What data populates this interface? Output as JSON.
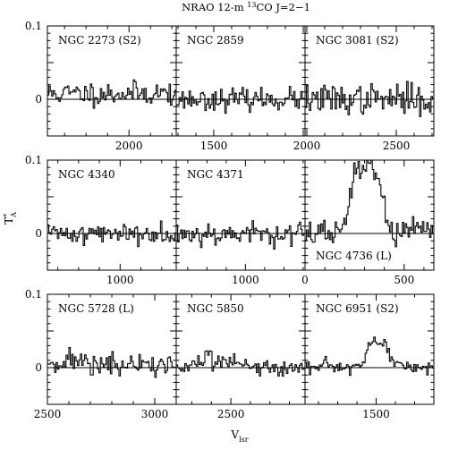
{
  "figure": {
    "title_main": "NRAO 12-m ",
    "title_iso": "13",
    "title_rest": "CO J=2−1",
    "ylabel_main": "T",
    "ylabel_sup": "*",
    "ylabel_sub": "A",
    "xlabel_main": "V",
    "xlabel_sub": "lsr"
  },
  "chart_data": [
    {
      "type": "line",
      "name": "NGC 2273 (S2)",
      "row": 0,
      "col": 0,
      "label_position": "top-left",
      "xlim": [
        1620,
        2220
      ],
      "ylim": [
        -0.05,
        0.1
      ],
      "x_ticks": [
        {
          "v": 2000,
          "label": "2000"
        }
      ],
      "y_ticks": [
        {
          "v": 0.1,
          "label": "0.1"
        },
        {
          "v": 0,
          "label": "0"
        }
      ],
      "features": [],
      "noise": 0.008,
      "baseline": 0.008,
      "seed": 11
    },
    {
      "type": "line",
      "name": "NGC 2859",
      "row": 0,
      "col": 1,
      "label_position": "top-left",
      "xlim": [
        1290,
        2010
      ],
      "ylim": [
        -0.05,
        0.1
      ],
      "x_ticks": [
        {
          "v": 1500,
          "label": "1500"
        }
      ],
      "y_ticks": [],
      "features": [],
      "noise": 0.007,
      "baseline": 0.0,
      "seed": 23
    },
    {
      "type": "line",
      "name": "NGC 3081 (S2)",
      "row": 0,
      "col": 2,
      "label_position": "top-left",
      "xlim": [
        1990,
        2710
      ],
      "ylim": [
        -0.05,
        0.1
      ],
      "x_ticks": [
        {
          "v": 2000,
          "label": "2000"
        },
        {
          "v": 2500,
          "label": "2500"
        }
      ],
      "y_ticks": [],
      "features": [],
      "noise": 0.01,
      "baseline": 0.0,
      "seed": 37
    },
    {
      "type": "line",
      "name": "NGC 4340",
      "row": 1,
      "col": 0,
      "label_position": "top-left",
      "xlim": [
        650,
        1270
      ],
      "ylim": [
        -0.05,
        0.1
      ],
      "x_ticks": [
        {
          "v": 1000,
          "label": "1000"
        }
      ],
      "y_ticks": [
        {
          "v": 0.1,
          "label": "0.1"
        },
        {
          "v": 0,
          "label": "0"
        }
      ],
      "features": [],
      "noise": 0.007,
      "baseline": 0.0,
      "seed": 41
    },
    {
      "type": "line",
      "name": "NGC 4371",
      "row": 1,
      "col": 1,
      "label_position": "top-left",
      "xlim": [
        640,
        1310
      ],
      "ylim": [
        -0.05,
        0.1
      ],
      "x_ticks": [
        {
          "v": 1000,
          "label": "1000"
        }
      ],
      "y_ticks": [],
      "features": [],
      "noise": 0.008,
      "baseline": 0.0,
      "seed": 53
    },
    {
      "type": "line",
      "name": "NGC 4736 (L)",
      "row": 1,
      "col": 2,
      "label_position": "bottom-left",
      "xlim": [
        0,
        650
      ],
      "ylim": [
        -0.05,
        0.1
      ],
      "x_ticks": [
        {
          "v": 0,
          "label": "0"
        },
        {
          "v": 500,
          "label": "500"
        }
      ],
      "y_ticks": [],
      "features": [
        {
          "center": 310,
          "amp": 0.092,
          "width": 85
        }
      ],
      "noise": 0.009,
      "baseline": 0.0,
      "seed": 67
    },
    {
      "type": "line",
      "name": "NGC 5728 (L)",
      "row": 2,
      "col": 0,
      "label_position": "top-left",
      "xlim": [
        2500,
        3100
      ],
      "ylim": [
        -0.05,
        0.1
      ],
      "x_ticks": [
        {
          "v": 2500,
          "label": "2500"
        },
        {
          "v": 3000,
          "label": "3000"
        }
      ],
      "y_ticks": [
        {
          "v": 0.1,
          "label": "0.1"
        },
        {
          "v": 0,
          "label": "0"
        }
      ],
      "features": [
        {
          "center": 2600,
          "amp": 0.006,
          "width": 120
        }
      ],
      "noise": 0.008,
      "baseline": 0.003,
      "seed": 71
    },
    {
      "type": "line",
      "name": "NGC 5850",
      "row": 2,
      "col": 1,
      "label_position": "top-left",
      "xlim": [
        2220,
        2880
      ],
      "ylim": [
        -0.05,
        0.1
      ],
      "x_ticks": [
        {
          "v": 2500,
          "label": "2500"
        }
      ],
      "y_ticks": [],
      "features": [
        {
          "center": 2450,
          "amp": 0.008,
          "width": 150
        }
      ],
      "noise": 0.006,
      "baseline": 0.0,
      "seed": 83
    },
    {
      "type": "line",
      "name": "NGC 6951 (S2)",
      "row": 2,
      "col": 2,
      "label_position": "top-left",
      "xlim": [
        1870,
        1200
      ],
      "ylim": [
        -0.05,
        0.1
      ],
      "x_ticks": [
        {
          "v": 1500,
          "label": "1500"
        }
      ],
      "y_ticks": [],
      "features": [
        {
          "center": 1500,
          "amp": 0.032,
          "width": 55
        },
        {
          "center": 1420,
          "amp": 0.012,
          "width": 40
        }
      ],
      "noise": 0.005,
      "baseline": 0.0,
      "seed": 97
    }
  ]
}
